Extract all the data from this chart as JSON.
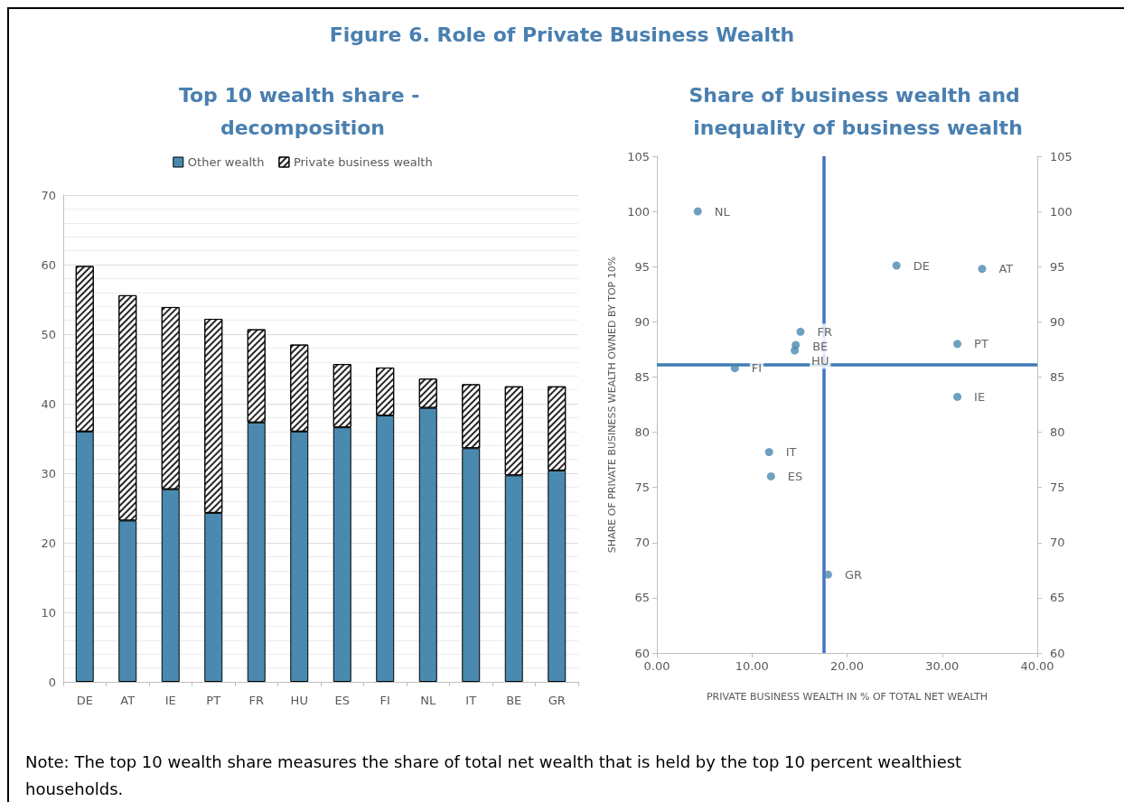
{
  "chart_data": [
    {
      "type": "other",
      "title": "Figure 6. Role of Private Business Wealth",
      "annotations": [
        "Note: The top 10 wealth share measures the share of total net wealth that is held by the top 10 percent wealthiest households."
      ]
    },
    {
      "type": "bar",
      "title": "Top 10 wealth share - decomposition",
      "stacked": true,
      "categories": [
        "DE",
        "AT",
        "IE",
        "PT",
        "FR",
        "HU",
        "ES",
        "FI",
        "NL",
        "IT",
        "BE",
        "GR"
      ],
      "series": [
        {
          "name": "Other wealth",
          "color": "#4a8ab0",
          "values": [
            36.0,
            23.2,
            27.7,
            24.3,
            37.3,
            36.0,
            36.6,
            38.3,
            39.4,
            33.6,
            29.7,
            30.4
          ]
        },
        {
          "name": "Private business wealth",
          "color": "#ffffff",
          "values": [
            23.8,
            32.4,
            26.2,
            27.9,
            13.4,
            12.5,
            9.1,
            6.9,
            4.2,
            9.2,
            12.8,
            12.1
          ]
        }
      ],
      "ylim": [
        0,
        70
      ],
      "yticks": [
        0,
        10,
        20,
        30,
        40,
        50,
        60,
        70
      ],
      "grid": "y",
      "legend": "top"
    },
    {
      "type": "scatter",
      "title": "Share of business wealth and inequality of business wealth",
      "xlabel": "PRIVATE BUSINESS WEALTH IN % OF TOTAL NET WEALTH",
      "ylabel": "SHARE OF PRIVATE BUSINESS WEALTH OWNED BY TOP 10%",
      "series": [
        {
          "color": "#4a8ab0",
          "x": [
            4.3,
            25.2,
            34.2,
            15.1,
            14.6,
            14.5,
            8.2,
            31.6,
            31.6,
            11.8,
            12.0,
            18.0
          ],
          "values": [
            100.0,
            95.1,
            94.8,
            89.1,
            87.9,
            87.4,
            85.8,
            88.0,
            83.2,
            78.2,
            76.0,
            67.1
          ],
          "value_labels": [
            "NL",
            "DE",
            "AT",
            "FR",
            "BE",
            "HU",
            "FI",
            "PT",
            "IE",
            "IT",
            "ES",
            "GR"
          ]
        }
      ],
      "xlim": [
        0,
        40
      ],
      "xticks": [
        {
          "value": 0,
          "label": "0.00"
        },
        {
          "value": 10,
          "label": "10.00"
        },
        {
          "value": 20,
          "label": "20.00"
        },
        {
          "value": 30,
          "label": "30.00"
        },
        {
          "value": 40,
          "label": "40.00"
        }
      ],
      "ylim": [
        60,
        105
      ],
      "yticks": [
        60,
        65,
        70,
        75,
        80,
        85,
        90,
        95,
        100,
        105
      ],
      "y2lim": [
        60,
        105
      ],
      "y2ticks": [
        60,
        65,
        70,
        75,
        80,
        85,
        90,
        95,
        100,
        105
      ],
      "marker": "circle",
      "ref_lines": [
        {
          "axis": "x",
          "value": 17.6,
          "color": "#4472c4"
        },
        {
          "axis": "y",
          "value": 86.1,
          "color": "#3f7ab5"
        }
      ]
    }
  ]
}
